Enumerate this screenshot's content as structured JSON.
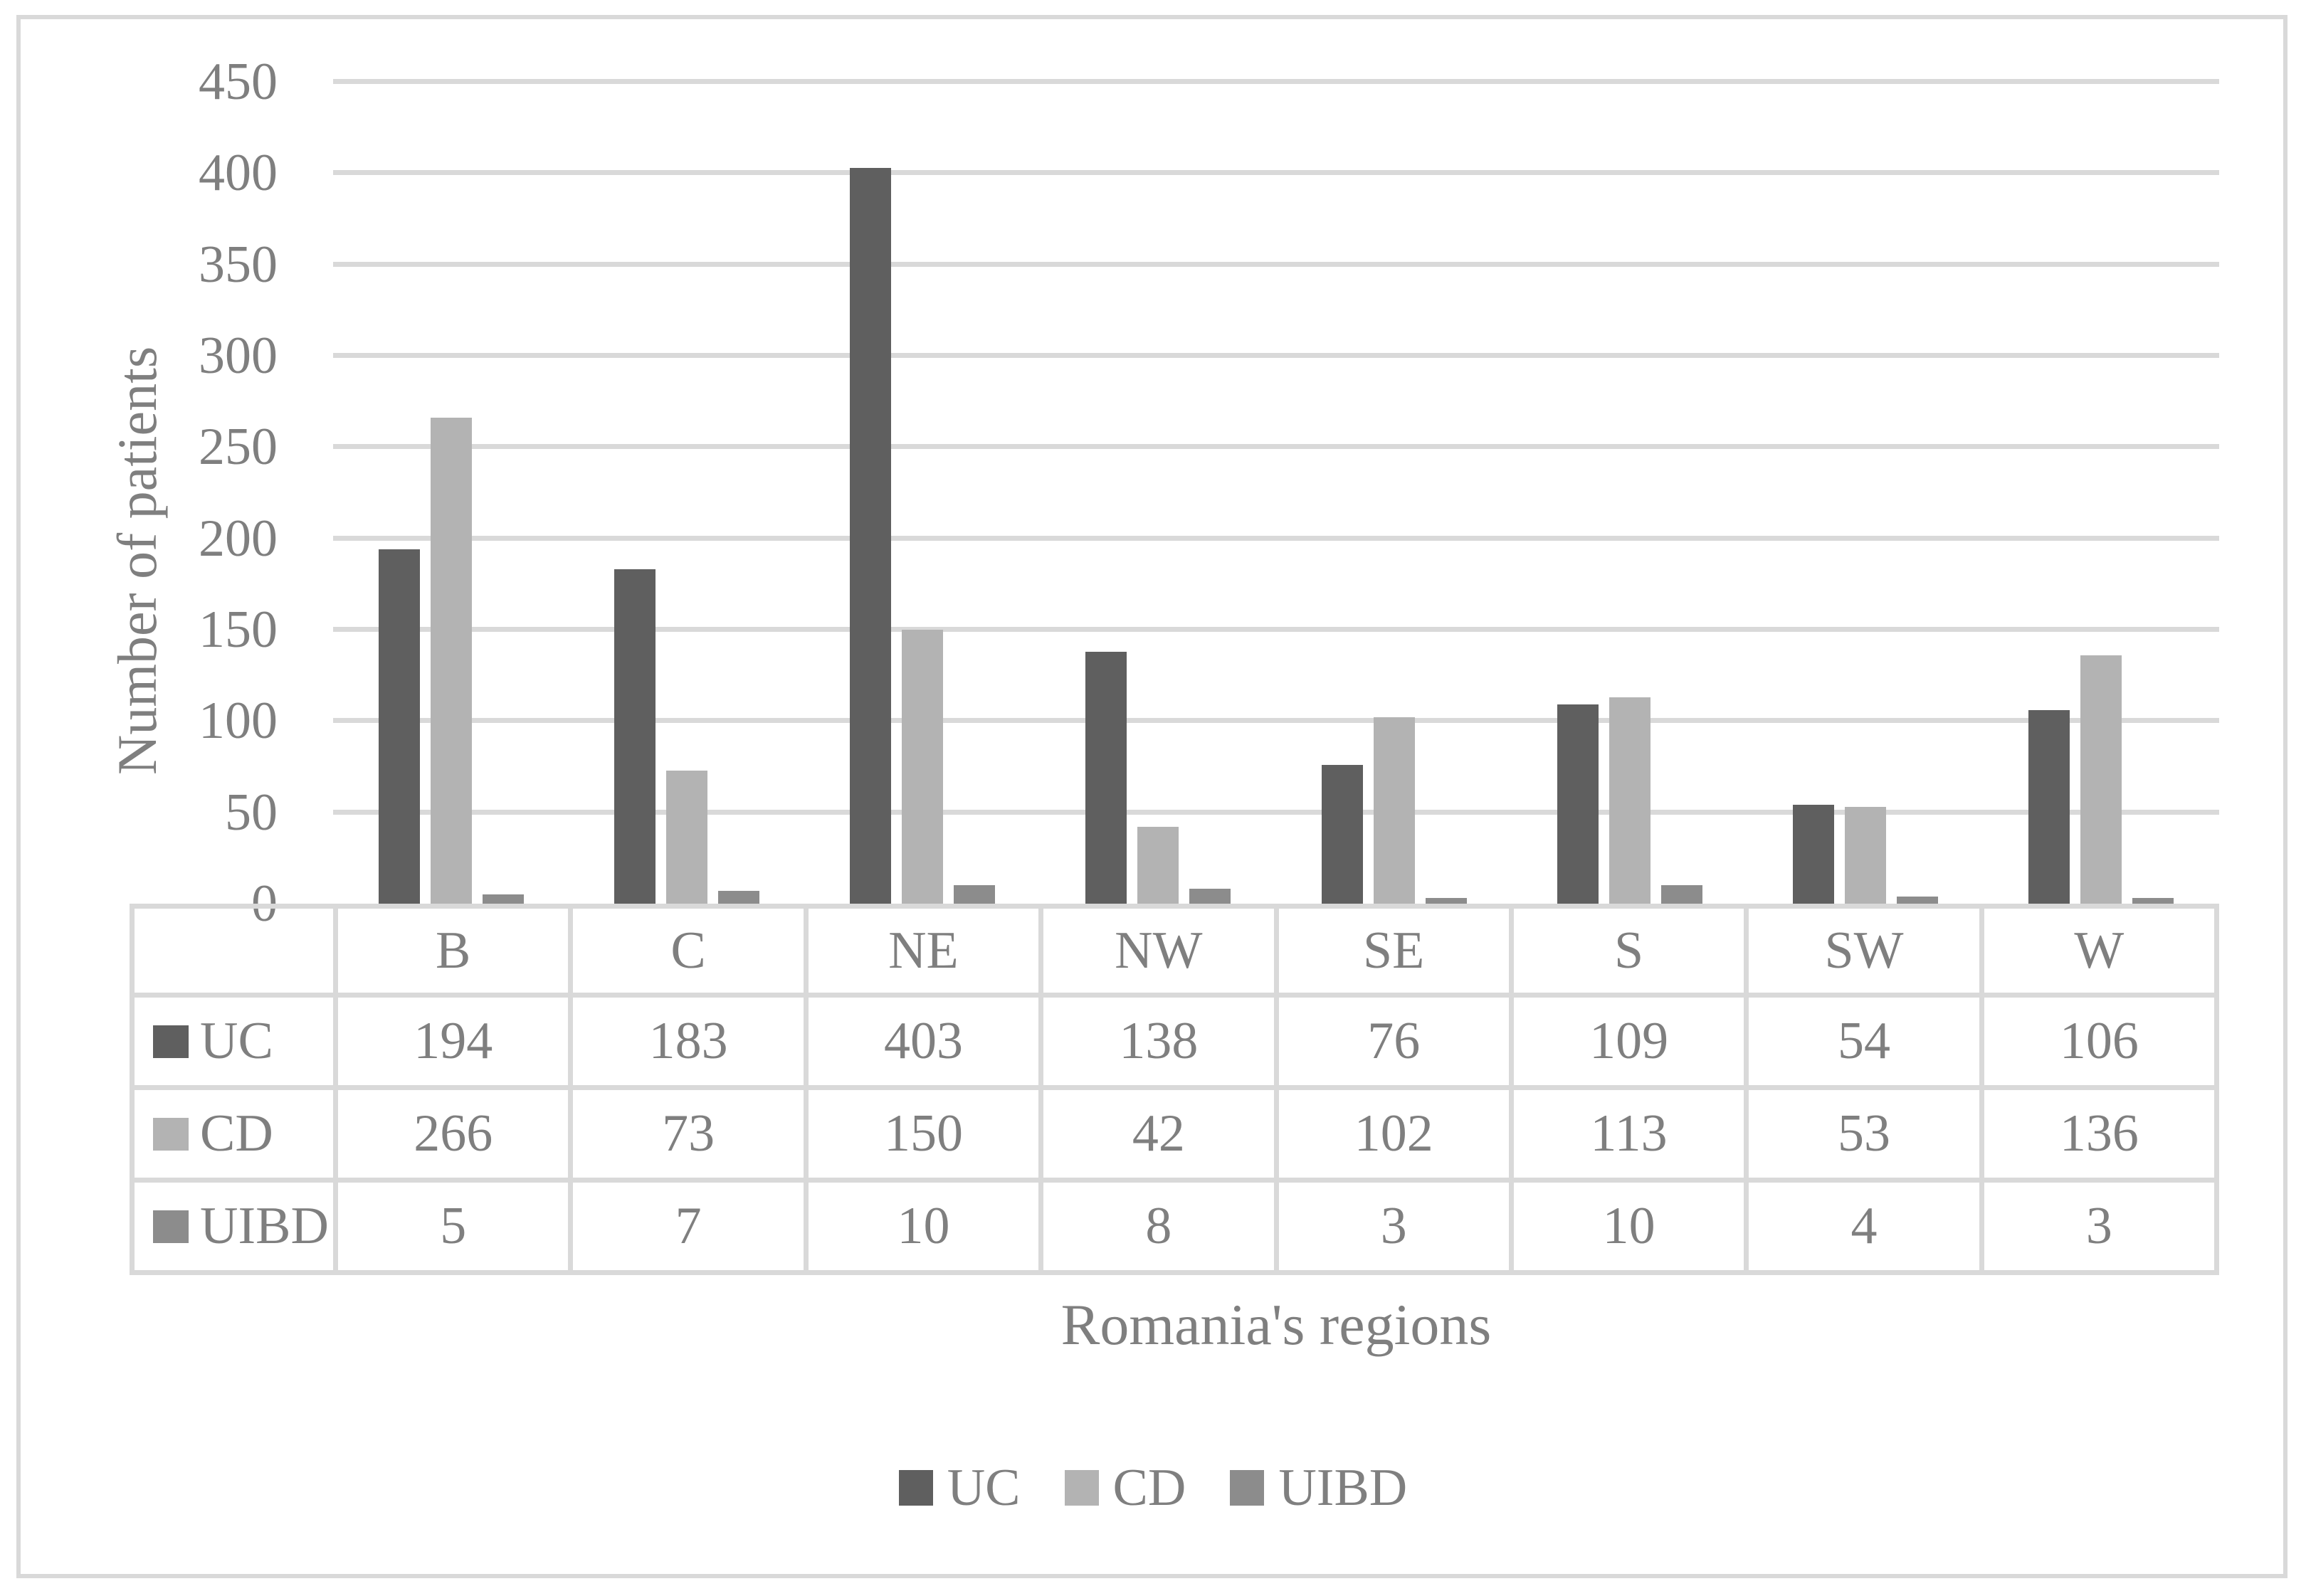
{
  "figure": {
    "background": "#ffffff",
    "frame_color": "#d9d9d9",
    "text_color": "#7f7f7f",
    "gridline_color": "#d9d9d9"
  },
  "chart_data": {
    "type": "bar",
    "title": "",
    "xlabel": "Romania's regions",
    "ylabel": "Number of patients",
    "categories": [
      "B",
      "C",
      "NE",
      "NW",
      "SE",
      "S",
      "SW",
      "W"
    ],
    "series": [
      {
        "name": "UC",
        "color": "#5f5f5f",
        "values": [
          194,
          183,
          403,
          138,
          76,
          109,
          54,
          106
        ]
      },
      {
        "name": "CD",
        "color": "#b3b3b3",
        "values": [
          266,
          73,
          150,
          42,
          102,
          113,
          53,
          136
        ]
      },
      {
        "name": "UIBD",
        "color": "#8c8c8c",
        "values": [
          5,
          7,
          10,
          8,
          3,
          10,
          4,
          3
        ]
      }
    ],
    "ylim": [
      0,
      450
    ],
    "ytick_step": 50,
    "yticks": [
      0,
      50,
      100,
      150,
      200,
      250,
      300,
      350,
      400,
      450
    ],
    "grid": "horizontal",
    "legend_position": "bottom",
    "legend_labels": [
      "UC",
      "CD",
      "UIBD"
    ],
    "data_table_shown": true
  }
}
